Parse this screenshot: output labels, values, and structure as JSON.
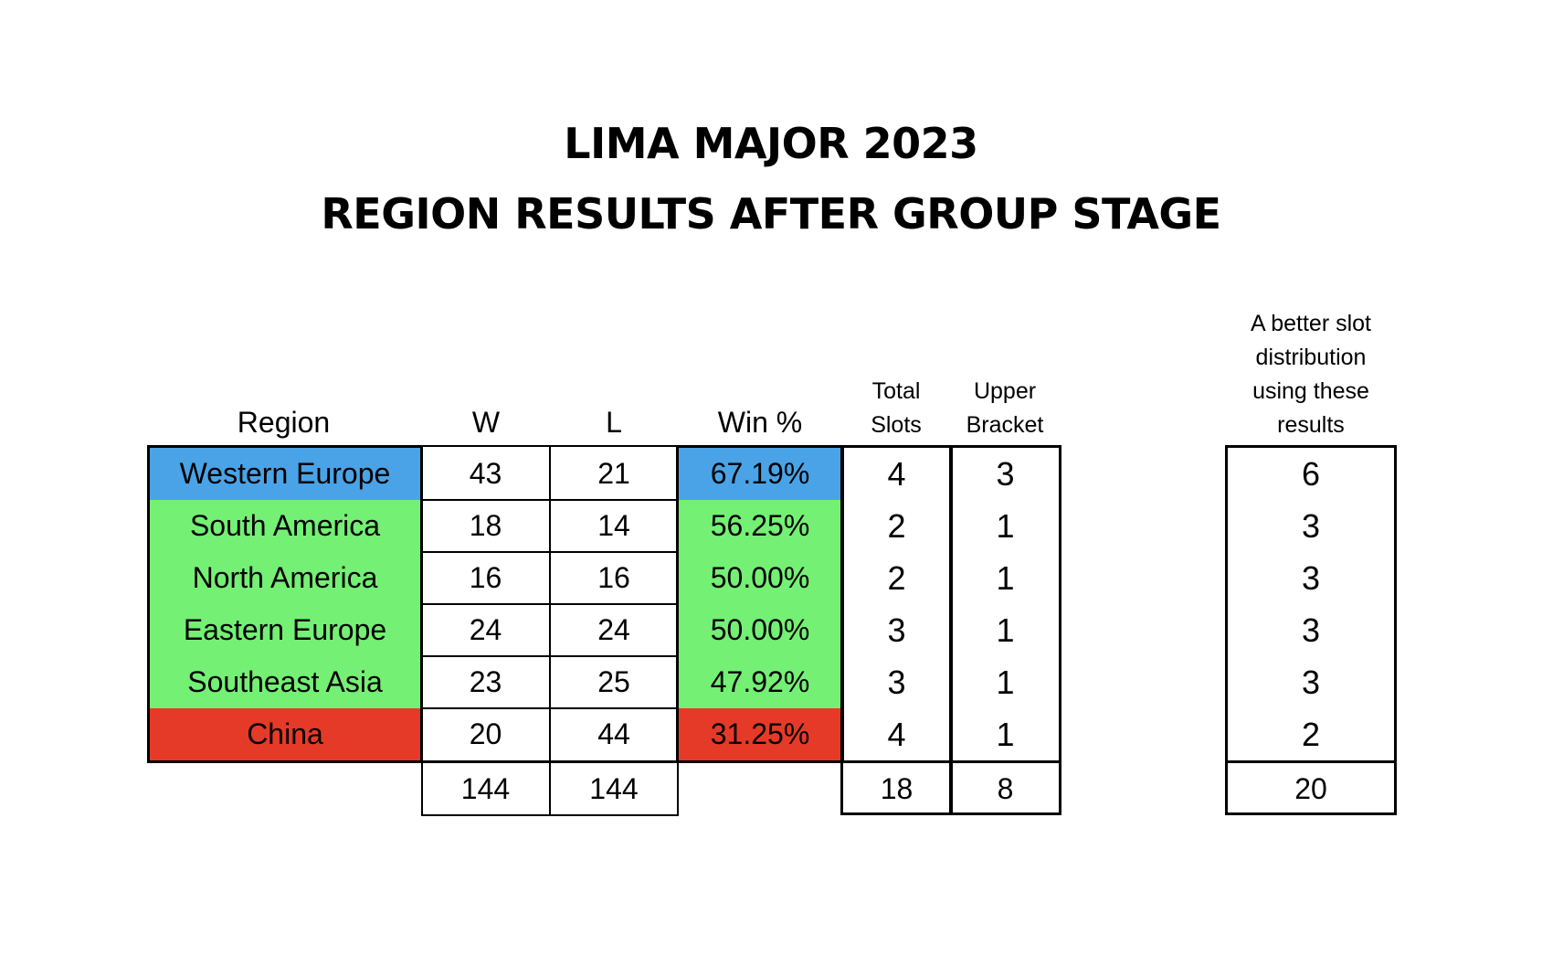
{
  "chart_data": {
    "type": "table",
    "title": "LIMA MAJOR 2023",
    "subtitle": "REGION RESULTS AFTER GROUP STAGE",
    "columns": [
      "Region",
      "W",
      "L",
      "Win %",
      "Total Slots",
      "Upper Bracket",
      "A better slot distribution using these results"
    ],
    "headers": {
      "region": "Region",
      "w": "W",
      "l": "L",
      "win": "Win %",
      "total_1": "Total",
      "total_2": "Slots",
      "upper_1": "Upper",
      "upper_2": "Bracket",
      "better_1": "A better slot",
      "better_2": "distribution",
      "better_3": "using these",
      "better_4": "results"
    },
    "rows": [
      {
        "region": "Western Europe",
        "w": "43",
        "l": "21",
        "win": "67.19%",
        "total": "4",
        "upper": "3",
        "better": "6",
        "color": "#4aa3e6"
      },
      {
        "region": "South America",
        "w": "18",
        "l": "14",
        "win": "56.25%",
        "total": "2",
        "upper": "1",
        "better": "3",
        "color": "#74f074"
      },
      {
        "region": "North America",
        "w": "16",
        "l": "16",
        "win": "50.00%",
        "total": "2",
        "upper": "1",
        "better": "3",
        "color": "#74f074"
      },
      {
        "region": "Eastern Europe",
        "w": "24",
        "l": "24",
        "win": "50.00%",
        "total": "3",
        "upper": "1",
        "better": "3",
        "color": "#74f074"
      },
      {
        "region": "Southeast Asia",
        "w": "23",
        "l": "25",
        "win": "47.92%",
        "total": "3",
        "upper": "1",
        "better": "3",
        "color": "#74f074"
      },
      {
        "region": "China",
        "w": "20",
        "l": "44",
        "win": "31.25%",
        "total": "4",
        "upper": "1",
        "better": "2",
        "color": "#e63a28"
      }
    ],
    "totals": {
      "w": "144",
      "l": "144",
      "total": "18",
      "upper": "8",
      "better": "20"
    }
  }
}
